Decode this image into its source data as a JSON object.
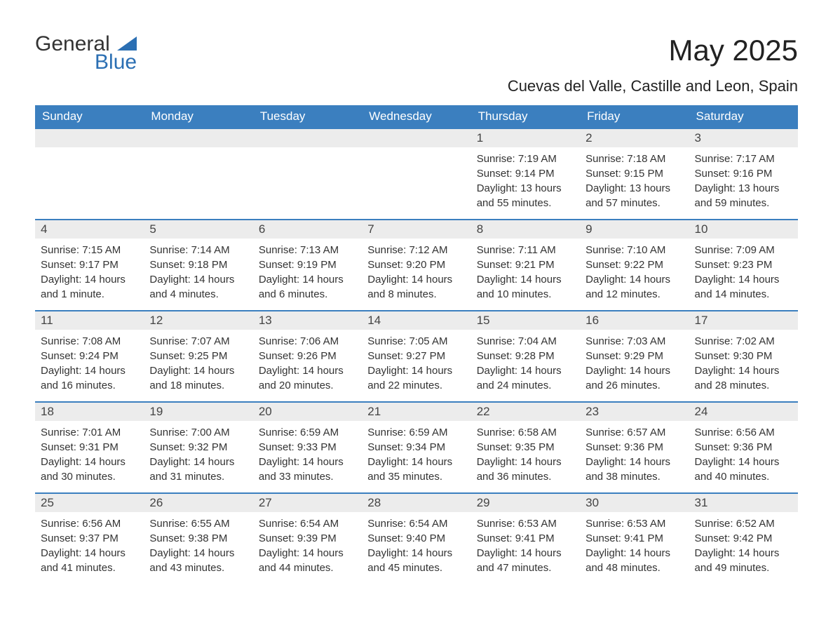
{
  "brand": {
    "name_part1": "General",
    "name_part2": "Blue",
    "text_color": "#333333",
    "accent_color": "#2b6fb3"
  },
  "header": {
    "month_title": "May 2025",
    "location": "Cuevas del Valle, Castille and Leon, Spain"
  },
  "colors": {
    "header_bg": "#3b7fbf",
    "header_text": "#ffffff",
    "daynum_bg": "#ececec",
    "daynum_text": "#444444",
    "body_text": "#333333",
    "row_border": "#3b7fbf",
    "page_bg": "#ffffff"
  },
  "typography": {
    "title_fontsize": 42,
    "location_fontsize": 22,
    "weekday_fontsize": 17,
    "daynum_fontsize": 17,
    "body_fontsize": 15
  },
  "weekdays": [
    "Sunday",
    "Monday",
    "Tuesday",
    "Wednesday",
    "Thursday",
    "Friday",
    "Saturday"
  ],
  "weeks": [
    [
      {
        "day": "",
        "sunrise": "",
        "sunset": "",
        "daylight": ""
      },
      {
        "day": "",
        "sunrise": "",
        "sunset": "",
        "daylight": ""
      },
      {
        "day": "",
        "sunrise": "",
        "sunset": "",
        "daylight": ""
      },
      {
        "day": "",
        "sunrise": "",
        "sunset": "",
        "daylight": ""
      },
      {
        "day": "1",
        "sunrise": "Sunrise: 7:19 AM",
        "sunset": "Sunset: 9:14 PM",
        "daylight": "Daylight: 13 hours and 55 minutes."
      },
      {
        "day": "2",
        "sunrise": "Sunrise: 7:18 AM",
        "sunset": "Sunset: 9:15 PM",
        "daylight": "Daylight: 13 hours and 57 minutes."
      },
      {
        "day": "3",
        "sunrise": "Sunrise: 7:17 AM",
        "sunset": "Sunset: 9:16 PM",
        "daylight": "Daylight: 13 hours and 59 minutes."
      }
    ],
    [
      {
        "day": "4",
        "sunrise": "Sunrise: 7:15 AM",
        "sunset": "Sunset: 9:17 PM",
        "daylight": "Daylight: 14 hours and 1 minute."
      },
      {
        "day": "5",
        "sunrise": "Sunrise: 7:14 AM",
        "sunset": "Sunset: 9:18 PM",
        "daylight": "Daylight: 14 hours and 4 minutes."
      },
      {
        "day": "6",
        "sunrise": "Sunrise: 7:13 AM",
        "sunset": "Sunset: 9:19 PM",
        "daylight": "Daylight: 14 hours and 6 minutes."
      },
      {
        "day": "7",
        "sunrise": "Sunrise: 7:12 AM",
        "sunset": "Sunset: 9:20 PM",
        "daylight": "Daylight: 14 hours and 8 minutes."
      },
      {
        "day": "8",
        "sunrise": "Sunrise: 7:11 AM",
        "sunset": "Sunset: 9:21 PM",
        "daylight": "Daylight: 14 hours and 10 minutes."
      },
      {
        "day": "9",
        "sunrise": "Sunrise: 7:10 AM",
        "sunset": "Sunset: 9:22 PM",
        "daylight": "Daylight: 14 hours and 12 minutes."
      },
      {
        "day": "10",
        "sunrise": "Sunrise: 7:09 AM",
        "sunset": "Sunset: 9:23 PM",
        "daylight": "Daylight: 14 hours and 14 minutes."
      }
    ],
    [
      {
        "day": "11",
        "sunrise": "Sunrise: 7:08 AM",
        "sunset": "Sunset: 9:24 PM",
        "daylight": "Daylight: 14 hours and 16 minutes."
      },
      {
        "day": "12",
        "sunrise": "Sunrise: 7:07 AM",
        "sunset": "Sunset: 9:25 PM",
        "daylight": "Daylight: 14 hours and 18 minutes."
      },
      {
        "day": "13",
        "sunrise": "Sunrise: 7:06 AM",
        "sunset": "Sunset: 9:26 PM",
        "daylight": "Daylight: 14 hours and 20 minutes."
      },
      {
        "day": "14",
        "sunrise": "Sunrise: 7:05 AM",
        "sunset": "Sunset: 9:27 PM",
        "daylight": "Daylight: 14 hours and 22 minutes."
      },
      {
        "day": "15",
        "sunrise": "Sunrise: 7:04 AM",
        "sunset": "Sunset: 9:28 PM",
        "daylight": "Daylight: 14 hours and 24 minutes."
      },
      {
        "day": "16",
        "sunrise": "Sunrise: 7:03 AM",
        "sunset": "Sunset: 9:29 PM",
        "daylight": "Daylight: 14 hours and 26 minutes."
      },
      {
        "day": "17",
        "sunrise": "Sunrise: 7:02 AM",
        "sunset": "Sunset: 9:30 PM",
        "daylight": "Daylight: 14 hours and 28 minutes."
      }
    ],
    [
      {
        "day": "18",
        "sunrise": "Sunrise: 7:01 AM",
        "sunset": "Sunset: 9:31 PM",
        "daylight": "Daylight: 14 hours and 30 minutes."
      },
      {
        "day": "19",
        "sunrise": "Sunrise: 7:00 AM",
        "sunset": "Sunset: 9:32 PM",
        "daylight": "Daylight: 14 hours and 31 minutes."
      },
      {
        "day": "20",
        "sunrise": "Sunrise: 6:59 AM",
        "sunset": "Sunset: 9:33 PM",
        "daylight": "Daylight: 14 hours and 33 minutes."
      },
      {
        "day": "21",
        "sunrise": "Sunrise: 6:59 AM",
        "sunset": "Sunset: 9:34 PM",
        "daylight": "Daylight: 14 hours and 35 minutes."
      },
      {
        "day": "22",
        "sunrise": "Sunrise: 6:58 AM",
        "sunset": "Sunset: 9:35 PM",
        "daylight": "Daylight: 14 hours and 36 minutes."
      },
      {
        "day": "23",
        "sunrise": "Sunrise: 6:57 AM",
        "sunset": "Sunset: 9:36 PM",
        "daylight": "Daylight: 14 hours and 38 minutes."
      },
      {
        "day": "24",
        "sunrise": "Sunrise: 6:56 AM",
        "sunset": "Sunset: 9:36 PM",
        "daylight": "Daylight: 14 hours and 40 minutes."
      }
    ],
    [
      {
        "day": "25",
        "sunrise": "Sunrise: 6:56 AM",
        "sunset": "Sunset: 9:37 PM",
        "daylight": "Daylight: 14 hours and 41 minutes."
      },
      {
        "day": "26",
        "sunrise": "Sunrise: 6:55 AM",
        "sunset": "Sunset: 9:38 PM",
        "daylight": "Daylight: 14 hours and 43 minutes."
      },
      {
        "day": "27",
        "sunrise": "Sunrise: 6:54 AM",
        "sunset": "Sunset: 9:39 PM",
        "daylight": "Daylight: 14 hours and 44 minutes."
      },
      {
        "day": "28",
        "sunrise": "Sunrise: 6:54 AM",
        "sunset": "Sunset: 9:40 PM",
        "daylight": "Daylight: 14 hours and 45 minutes."
      },
      {
        "day": "29",
        "sunrise": "Sunrise: 6:53 AM",
        "sunset": "Sunset: 9:41 PM",
        "daylight": "Daylight: 14 hours and 47 minutes."
      },
      {
        "day": "30",
        "sunrise": "Sunrise: 6:53 AM",
        "sunset": "Sunset: 9:41 PM",
        "daylight": "Daylight: 14 hours and 48 minutes."
      },
      {
        "day": "31",
        "sunrise": "Sunrise: 6:52 AM",
        "sunset": "Sunset: 9:42 PM",
        "daylight": "Daylight: 14 hours and 49 minutes."
      }
    ]
  ]
}
